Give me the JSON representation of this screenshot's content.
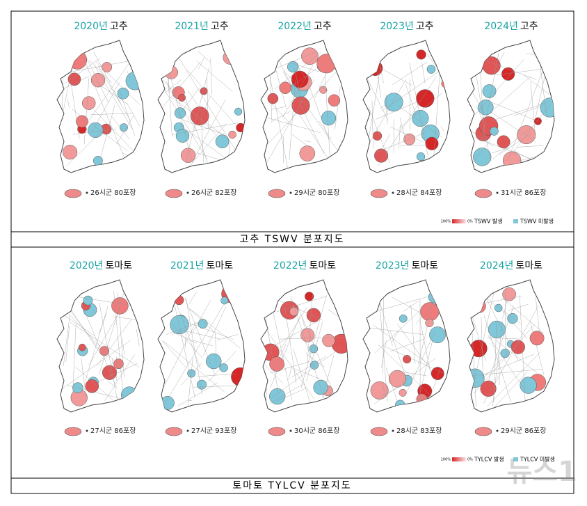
{
  "panels": [
    {
      "caption": "고추 TSWV 분포지도",
      "maps": [
        {
          "year": "2020년",
          "crop": "고추",
          "stat": "26시군 80포장"
        },
        {
          "year": "2021년",
          "crop": "고추",
          "stat": "26시군 82포장"
        },
        {
          "year": "2022년",
          "crop": "고추",
          "stat": "29시군 80포장"
        },
        {
          "year": "2023년",
          "crop": "고추",
          "stat": "28시군 84포장"
        },
        {
          "year": "2024년",
          "crop": "고추",
          "stat": "31시군 86포장"
        }
      ],
      "legend": {
        "max": "100%",
        "min": "0%",
        "occurred": "TSWV 발생",
        "not_occurred": "TSWV 미발생"
      }
    },
    {
      "caption": "토마토 TYLCV 분포지도",
      "maps": [
        {
          "year": "2020년",
          "crop": "토마토",
          "stat": "27시군 86포장"
        },
        {
          "year": "2021년",
          "crop": "토마토",
          "stat": "27시군 93포장"
        },
        {
          "year": "2022년",
          "crop": "토마토",
          "stat": "30시군 86포장"
        },
        {
          "year": "2023년",
          "crop": "토마토",
          "stat": "28시군 83포장"
        },
        {
          "year": "2024년",
          "crop": "토마토",
          "stat": "29시군 86포장"
        }
      ],
      "legend": {
        "max": "100%",
        "min": "0%",
        "occurred": "TYLCV 발생",
        "not_occurred": "TYLCV 미발생"
      }
    }
  ],
  "watermark": "뉴스1"
}
